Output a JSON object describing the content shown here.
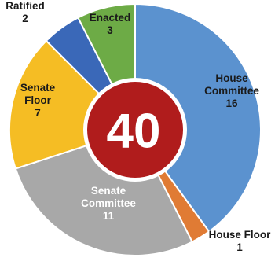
{
  "chart_data": {
    "type": "pie",
    "variant": "donut",
    "total_label": "40",
    "slices": [
      {
        "name": "House Committee",
        "value": 16,
        "color": "#5b92cf",
        "label_lines": [
          "House",
          "Committee",
          "16"
        ],
        "text_color": "#1a1a1a"
      },
      {
        "name": "House Floor",
        "value": 1,
        "color": "#e07b34",
        "label_lines": [
          "House Floor",
          "1"
        ],
        "text_color": "#1a1a1a"
      },
      {
        "name": "Senate Committee",
        "value": 11,
        "color": "#a8a8a8",
        "label_lines": [
          "Senate",
          "Committee",
          "11"
        ],
        "text_color": "#ffffff"
      },
      {
        "name": "Senate Floor",
        "value": 7,
        "color": "#f5bd24",
        "label_lines": [
          "Senate",
          "Floor",
          "7"
        ],
        "text_color": "#1a1a1a"
      },
      {
        "name": "Ratified",
        "value": 2,
        "color": "#3a68b8",
        "label_lines": [
          "Ratified",
          "2"
        ],
        "text_color": "#1a1a1a"
      },
      {
        "name": "Enacted",
        "value": 3,
        "color": "#6dab46",
        "label_lines": [
          "Enacted",
          "3"
        ],
        "text_color": "#1a1a1a"
      }
    ],
    "center_color": "#b01c1c",
    "center_ring_color": "#ffffff"
  }
}
